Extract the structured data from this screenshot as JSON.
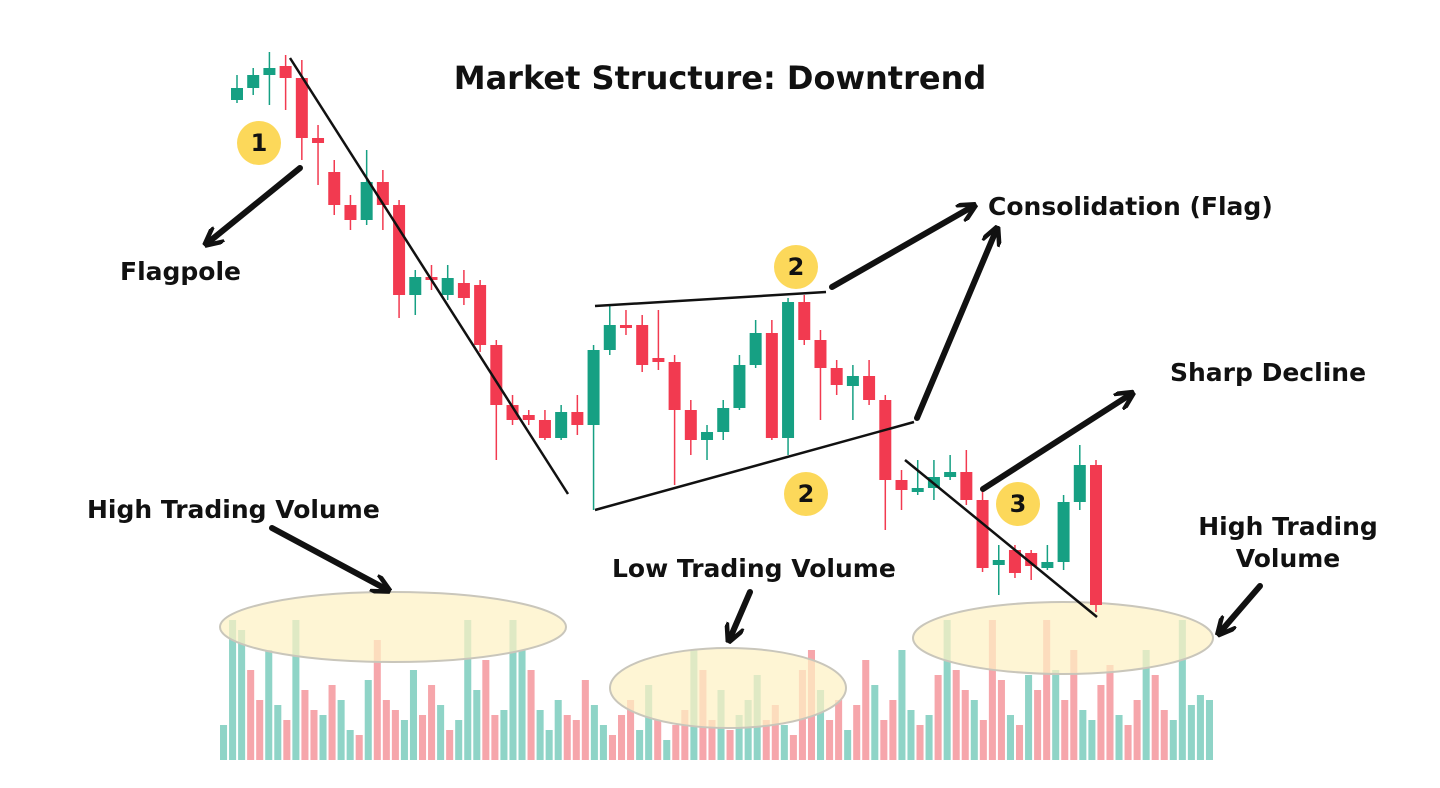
{
  "title": "Market Structure: Downtrend",
  "labels": {
    "flagpole": "Flagpole",
    "consolidation": "Consolidation (Flag)",
    "sharp_decline": "Sharp Decline",
    "high_volume_left": "High Trading Volume",
    "low_volume": "Low Trading Volume",
    "high_volume_right": [
      "High Trading",
      "Volume"
    ]
  },
  "markers": [
    "1",
    "2",
    "2",
    "3"
  ],
  "candles": [
    {
      "o": 700,
      "h": 725,
      "l": 697,
      "c": 712
    },
    {
      "o": 712,
      "h": 732,
      "l": 705,
      "c": 725
    },
    {
      "o": 725,
      "h": 748,
      "l": 695,
      "c": 732
    },
    {
      "o": 734,
      "h": 745,
      "l": 690,
      "c": 722
    },
    {
      "o": 722,
      "h": 740,
      "l": 640,
      "c": 662
    },
    {
      "o": 662,
      "h": 675,
      "l": 615,
      "c": 657
    },
    {
      "o": 628,
      "h": 640,
      "l": 585,
      "c": 595
    },
    {
      "o": 595,
      "h": 605,
      "l": 570,
      "c": 580
    },
    {
      "o": 580,
      "h": 650,
      "l": 575,
      "c": 618
    },
    {
      "o": 618,
      "h": 630,
      "l": 570,
      "c": 595
    },
    {
      "o": 595,
      "h": 600,
      "l": 482,
      "c": 505
    },
    {
      "o": 505,
      "h": 530,
      "l": 485,
      "c": 523
    },
    {
      "o": 523,
      "h": 535,
      "l": 510,
      "c": 520
    },
    {
      "o": 505,
      "h": 535,
      "l": 500,
      "c": 522
    },
    {
      "o": 517,
      "h": 530,
      "l": 495,
      "c": 502
    },
    {
      "o": 515,
      "h": 520,
      "l": 448,
      "c": 455
    },
    {
      "o": 455,
      "h": 460,
      "l": 340,
      "c": 395
    },
    {
      "o": 395,
      "h": 405,
      "l": 375,
      "c": 380
    },
    {
      "o": 385,
      "h": 390,
      "l": 375,
      "c": 380
    },
    {
      "o": 380,
      "h": 390,
      "l": 360,
      "c": 362
    },
    {
      "o": 362,
      "h": 395,
      "l": 360,
      "c": 388
    },
    {
      "o": 388,
      "h": 405,
      "l": 365,
      "c": 375
    },
    {
      "o": 375,
      "h": 455,
      "l": 290,
      "c": 450
    },
    {
      "o": 450,
      "h": 495,
      "l": 445,
      "c": 475
    },
    {
      "o": 475,
      "h": 490,
      "l": 465,
      "c": 472
    },
    {
      "o": 475,
      "h": 485,
      "l": 428,
      "c": 435
    },
    {
      "o": 442,
      "h": 490,
      "l": 430,
      "c": 438
    },
    {
      "o": 438,
      "h": 445,
      "l": 315,
      "c": 390
    },
    {
      "o": 390,
      "h": 400,
      "l": 345,
      "c": 360
    },
    {
      "o": 360,
      "h": 375,
      "l": 340,
      "c": 368
    },
    {
      "o": 368,
      "h": 400,
      "l": 360,
      "c": 392
    },
    {
      "o": 392,
      "h": 445,
      "l": 390,
      "c": 435
    },
    {
      "o": 435,
      "h": 480,
      "l": 432,
      "c": 467
    },
    {
      "o": 467,
      "h": 480,
      "l": 360,
      "c": 362
    },
    {
      "o": 362,
      "h": 502,
      "l": 345,
      "c": 498
    },
    {
      "o": 498,
      "h": 505,
      "l": 455,
      "c": 460
    },
    {
      "o": 460,
      "h": 470,
      "l": 380,
      "c": 432
    },
    {
      "o": 432,
      "h": 440,
      "l": 405,
      "c": 415
    },
    {
      "o": 414,
      "h": 435,
      "l": 380,
      "c": 424
    },
    {
      "o": 424,
      "h": 440,
      "l": 395,
      "c": 400
    },
    {
      "o": 400,
      "h": 405,
      "l": 270,
      "c": 320
    },
    {
      "o": 320,
      "h": 330,
      "l": 290,
      "c": 310
    },
    {
      "o": 308,
      "h": 340,
      "l": 305,
      "c": 312
    },
    {
      "o": 312,
      "h": 340,
      "l": 300,
      "c": 323
    },
    {
      "o": 323,
      "h": 345,
      "l": 320,
      "c": 328
    },
    {
      "o": 328,
      "h": 350,
      "l": 295,
      "c": 300
    },
    {
      "o": 300,
      "h": 310,
      "l": 228,
      "c": 232
    },
    {
      "o": 235,
      "h": 255,
      "l": 205,
      "c": 240
    },
    {
      "o": 250,
      "h": 255,
      "l": 222,
      "c": 227
    },
    {
      "o": 247,
      "h": 250,
      "l": 220,
      "c": 234
    },
    {
      "o": 232,
      "h": 255,
      "l": 230,
      "c": 238
    },
    {
      "o": 238,
      "h": 305,
      "l": 230,
      "c": 298
    },
    {
      "o": 298,
      "h": 355,
      "l": 290,
      "c": 335
    },
    {
      "o": 335,
      "h": 340,
      "l": 188,
      "c": 195
    }
  ],
  "volume": [
    35,
    140,
    130,
    90,
    60,
    110,
    55,
    40,
    140,
    70,
    50,
    45,
    75,
    60,
    30,
    25,
    80,
    120,
    60,
    50,
    40,
    90,
    45,
    75,
    55,
    30,
    40,
    140,
    70,
    100,
    45,
    50,
    140,
    110,
    90,
    50,
    30,
    60,
    45,
    40,
    80,
    55,
    35,
    25,
    45,
    60,
    30,
    75,
    40,
    20,
    35,
    50,
    110,
    90,
    40,
    70,
    30,
    45,
    60,
    85,
    40,
    55,
    35,
    25,
    90,
    110,
    70,
    40,
    60,
    30,
    55,
    100,
    75,
    40,
    60,
    110,
    50,
    35,
    45,
    85,
    140,
    90,
    70,
    60,
    40,
    140,
    80,
    45,
    35,
    85,
    70,
    140,
    90,
    60,
    110,
    50,
    40,
    75,
    95,
    45,
    35,
    60,
    110,
    85,
    50,
    40,
    140,
    55,
    65,
    60
  ],
  "volume_up": [
    true,
    true,
    true,
    false,
    false,
    true,
    true,
    false,
    true,
    false,
    false,
    true,
    false,
    true,
    true,
    false,
    true,
    false,
    false,
    false,
    true,
    true,
    false,
    false,
    true,
    false,
    true,
    true,
    true,
    false,
    false,
    true,
    true,
    true,
    false,
    true,
    true,
    true,
    false,
    false,
    false,
    true,
    true,
    false,
    false,
    false,
    true,
    true,
    false,
    true,
    false,
    false,
    true,
    false,
    false,
    true,
    false,
    true,
    true,
    true,
    false,
    false,
    true,
    false,
    false,
    false,
    true,
    false,
    false,
    true,
    false,
    false,
    true,
    false,
    false,
    true,
    true,
    false,
    true,
    false,
    true,
    false,
    false,
    true,
    false,
    false,
    false,
    true,
    false,
    true,
    false,
    false,
    true,
    false,
    false,
    true,
    true,
    false,
    false,
    true,
    false,
    false,
    true,
    false,
    false,
    true,
    true,
    true,
    true,
    true
  ]
}
